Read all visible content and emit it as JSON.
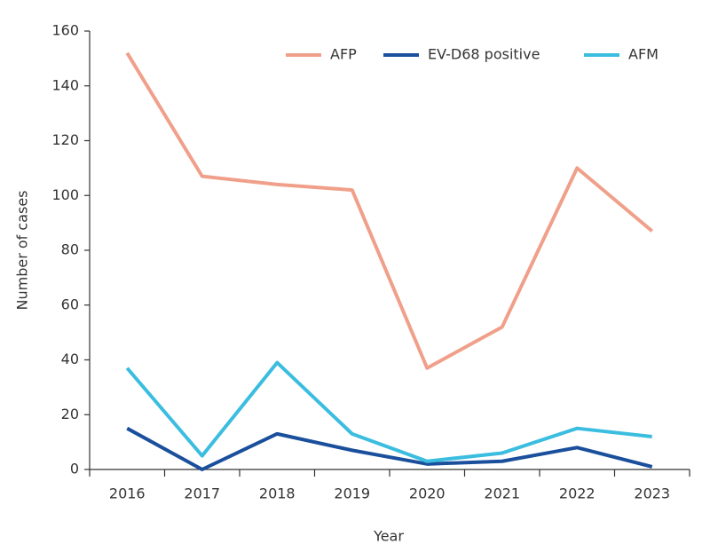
{
  "chart_data": {
    "type": "line",
    "x_label": "Year",
    "y_label": "Number of cases",
    "categories": [
      "2016",
      "2017",
      "2018",
      "2019",
      "2020",
      "2021",
      "2022",
      "2023"
    ],
    "series": [
      {
        "name": "AFP",
        "color": "#f0a08a",
        "values": [
          152,
          107,
          104,
          102,
          37,
          52,
          110,
          87
        ]
      },
      {
        "name": "EV-D68 positive",
        "color": "#1a4f9c",
        "values": [
          15,
          0,
          13,
          7,
          2,
          3,
          8,
          1
        ]
      },
      {
        "name": "AFM",
        "color": "#3bbde0",
        "values": [
          37,
          5,
          39,
          13,
          3,
          6,
          15,
          12
        ]
      }
    ],
    "ylim": [
      0,
      160
    ],
    "yticks": [
      0,
      20,
      40,
      60,
      80,
      100,
      120,
      140,
      160
    ],
    "grid": false,
    "legend": "top-right"
  }
}
